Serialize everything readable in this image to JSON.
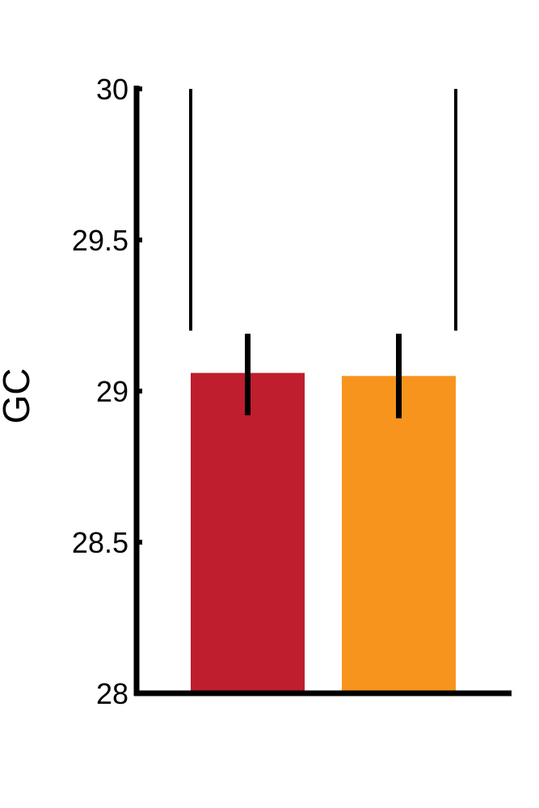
{
  "chart_data": {
    "type": "bar",
    "title": "",
    "xlabel": "",
    "ylabel": "GC",
    "ylim": [
      28,
      30
    ],
    "yticks": [
      28,
      28.5,
      29,
      29.5,
      30
    ],
    "ytick_labels": [
      "28",
      "28.5",
      "29",
      "29.5",
      "30"
    ],
    "grid": false,
    "legend": "none",
    "series": [
      {
        "values": [
          29.06,
          29.05
        ],
        "error_low": [
          28.92,
          28.91
        ],
        "error_high": [
          29.19,
          29.19
        ],
        "colors": [
          "#be1e2d",
          "#f7941d"
        ]
      }
    ],
    "significance_bracket": {
      "between": [
        0,
        1
      ],
      "from": 29.2,
      "to": 30,
      "label": ""
    }
  }
}
